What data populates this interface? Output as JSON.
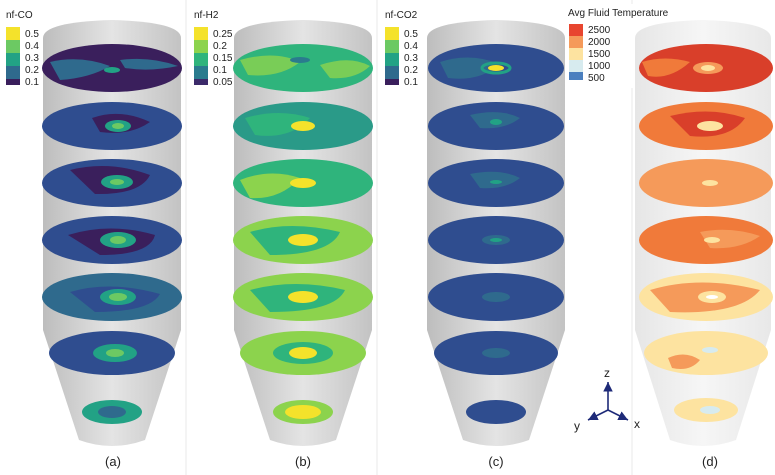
{
  "panels": [
    {
      "id": "a",
      "caption": "(a)",
      "legend_title": "nf-CO",
      "legend_ticks": [
        "0.5",
        "0.4",
        "0.3",
        "0.2",
        "0.1"
      ],
      "legend_colors": [
        "#f4e22b",
        "#6cc963",
        "#22a285",
        "#2f6a8d",
        "#3a1f5c"
      ]
    },
    {
      "id": "b",
      "caption": "(b)",
      "legend_title": "nf-H2",
      "legend_ticks": [
        "0.25",
        "0.2",
        "0.15",
        "0.1",
        "0.05"
      ],
      "legend_colors": [
        "#f4e22b",
        "#8cd34d",
        "#2fb47c",
        "#2a7b8e",
        "#3c2a6a"
      ]
    },
    {
      "id": "c",
      "caption": "(c)",
      "legend_title": "nf-CO2",
      "legend_ticks": [
        "0.5",
        "0.4",
        "0.3",
        "0.2",
        "0.1"
      ],
      "legend_colors": [
        "#f4e22b",
        "#6cc963",
        "#22a285",
        "#2f6a8d",
        "#3a1f5c"
      ]
    },
    {
      "id": "d",
      "caption": "(d)",
      "legend_title": "Avg Fluid Temperature",
      "legend_ticks": [
        "2500",
        "2000",
        "1500",
        "1000",
        "500"
      ],
      "legend_colors": [
        "#e8452f",
        "#f59a5a",
        "#fde3a0",
        "#d7ebef",
        "#4a7fbf"
      ]
    }
  ],
  "axes": {
    "z": "z",
    "x": "x",
    "y": "y"
  }
}
